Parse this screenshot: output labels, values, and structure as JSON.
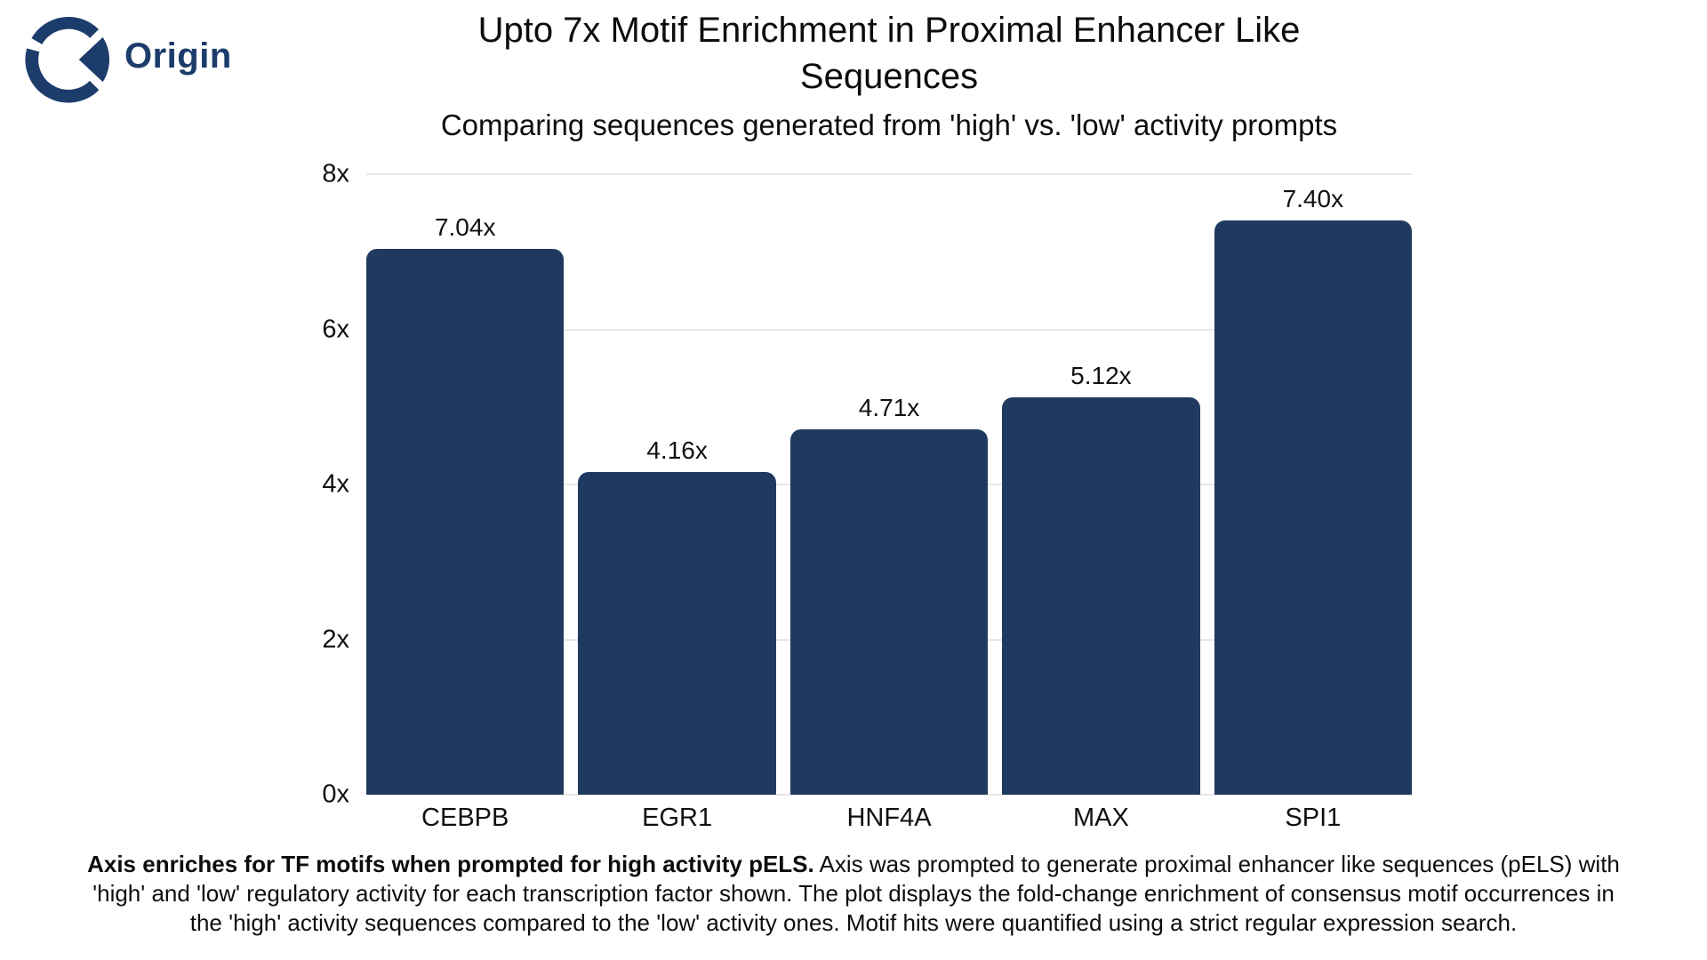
{
  "logo": {
    "text": "Origin",
    "color": "#1c3c6b"
  },
  "chart_data": {
    "type": "bar",
    "title": "Upto 7x Motif Enrichment in Proximal Enhancer Like Sequences",
    "subtitle": "Comparing sequences generated from 'high' vs. 'low' activity prompts",
    "categories": [
      "CEBPB",
      "EGR1",
      "HNF4A",
      "MAX",
      "SPI1"
    ],
    "values": [
      7.04,
      4.16,
      4.71,
      5.12,
      7.4
    ],
    "bar_labels": [
      "7.04x",
      "4.16x",
      "4.71x",
      "5.12x",
      "7.40x"
    ],
    "xlabel": "",
    "ylabel": "",
    "ylim": [
      0,
      8
    ],
    "ytick_labels": [
      "0x",
      "2x",
      "4x",
      "6x",
      "8x"
    ],
    "grid": true,
    "legend_position": "none",
    "bar_color": "#203a5f",
    "gridline_color": "#e7e7e7"
  },
  "caption": {
    "bold": "Axis enriches for TF motifs when prompted for high activity pELS.",
    "text": " Axis was prompted to generate proximal enhancer like sequences (pELS) with 'high' and 'low' regulatory activity for each transcription factor shown. The plot displays the fold-change enrichment of consensus motif occurrences in the 'high' activity sequences compared to the 'low' activity ones. Motif hits were quantified using a strict regular expression search."
  }
}
